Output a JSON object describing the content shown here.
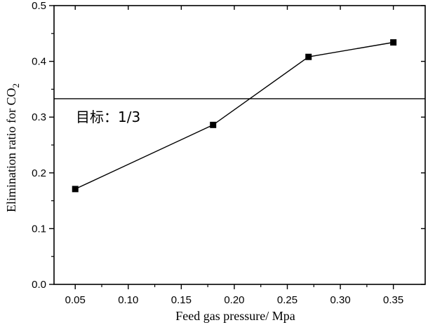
{
  "chart_data": {
    "type": "line",
    "title": "",
    "xlabel": "Feed gas pressure/ Mpa",
    "ylabel": "Elimination ratio for CO",
    "ylabel_subscript": "2",
    "xlim": [
      0.03,
      0.38
    ],
    "ylim": [
      0.0,
      0.5
    ],
    "xticks": [
      "0.05",
      "0.10",
      "0.15",
      "0.20",
      "0.25",
      "0.30",
      "0.35"
    ],
    "xtick_values": [
      0.05,
      0.1,
      0.15,
      0.2,
      0.25,
      0.3,
      0.35
    ],
    "yticks": [
      "0.0",
      "0.1",
      "0.2",
      "0.3",
      "0.4",
      "0.5"
    ],
    "ytick_values": [
      0.0,
      0.1,
      0.2,
      0.3,
      0.4,
      0.5
    ],
    "grid": false,
    "series": [
      {
        "marker": "square",
        "x": [
          0.05,
          0.18,
          0.27,
          0.35
        ],
        "y": [
          0.171,
          0.286,
          0.408,
          0.434
        ]
      }
    ],
    "reference_line": {
      "y": 0.333,
      "label": "目标：1/3"
    },
    "colors": {
      "line": "#000000",
      "marker": "#000000",
      "axis": "#000000"
    }
  }
}
